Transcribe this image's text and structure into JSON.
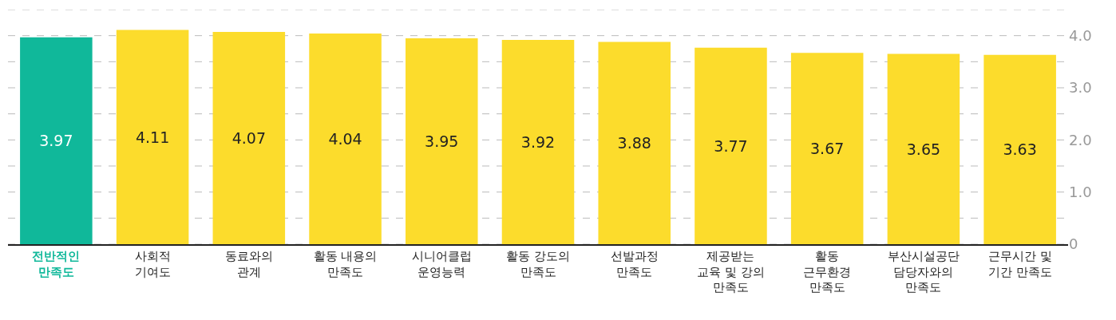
{
  "chart_data": {
    "type": "bar",
    "categories": [
      "전반적인\n만족도",
      "사회적\n기여도",
      "동료와의\n관계",
      "활동 내용의\n만족도",
      "시니어클럽\n운영능력",
      "활동 강도의\n만족도",
      "선발과정\n만족도",
      "제공받는\n교육 및 강의\n만족도",
      "활동\n근무환경\n만족도",
      "부산시설공단\n담당자와의\n만족도",
      "근무시간 및\n기간 만족도"
    ],
    "values": [
      3.97,
      4.11,
      4.07,
      4.04,
      3.95,
      3.92,
      3.88,
      3.77,
      3.67,
      3.65,
      3.63
    ],
    "colors": [
      "#10b89a",
      "#fcdc2c",
      "#fcdc2c",
      "#fcdc2c",
      "#fcdc2c",
      "#fcdc2c",
      "#fcdc2c",
      "#fcdc2c",
      "#fcdc2c",
      "#fcdc2c",
      "#fcdc2c"
    ],
    "ylim": [
      0,
      4.5
    ],
    "yticks": [
      0,
      {
        "value": 0.5,
        "label": null
      },
      {
        "value": 1,
        "label": "1.0"
      },
      {
        "value": 1.5,
        "label": null
      },
      {
        "value": 2,
        "label": "2.0"
      },
      {
        "value": 2.5,
        "label": null
      },
      {
        "value": 3,
        "label": "3.0"
      },
      {
        "value": 3.5,
        "label": null
      },
      {
        "value": 4,
        "label": "4.0"
      },
      {
        "value": 4.5,
        "label": null
      }
    ],
    "grid": "y",
    "data_labels": true
  }
}
